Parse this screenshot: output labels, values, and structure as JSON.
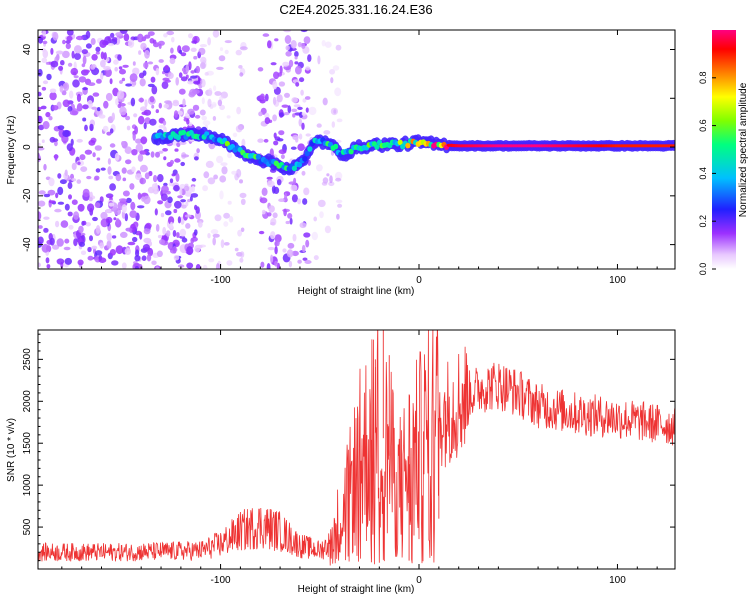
{
  "title": "C2E4.2025.331.16.24.E36",
  "chart_data": [
    {
      "type": "heatmap",
      "name": "spectrogram",
      "xlabel": "Height of straight line (km)",
      "ylabel": "Frequency (Hz)",
      "xlim": [
        -192,
        129
      ],
      "ylim": [
        -50,
        48
      ],
      "xticks": [
        -100,
        0,
        100
      ],
      "xtick_labels": [
        "-100",
        "0",
        "100"
      ],
      "yticks": [
        -40,
        -20,
        0,
        20,
        40
      ],
      "ytick_labels": [
        "-40",
        "-20",
        "0",
        "20",
        "40"
      ],
      "colorbar": {
        "label": "Normalized spectral amplitude",
        "range": [
          0,
          1
        ],
        "ticks": [
          0.0,
          0.2,
          0.4,
          0.6,
          0.8
        ],
        "tick_labels": [
          "0.0",
          "0.2",
          "0.4",
          "0.6",
          "0.8"
        ]
      },
      "ridge": {
        "x": [
          -133,
          -120,
          -108,
          -100,
          -90,
          -80,
          -72,
          -65,
          -58,
          -52,
          -45,
          -38,
          -30,
          -20,
          -10,
          0,
          10,
          20,
          40,
          60,
          80,
          100,
          129
        ],
        "y": [
          4,
          5,
          5,
          3,
          -2,
          -5,
          -7,
          -9,
          -6,
          3,
          1,
          -3,
          0,
          1,
          1,
          2,
          1,
          0.5,
          0.5,
          0.5,
          0.5,
          0.5,
          0.5
        ],
        "amplitude": [
          0.4,
          0.45,
          0.45,
          0.5,
          0.5,
          0.5,
          0.45,
          0.45,
          0.4,
          0.45,
          0.45,
          0.5,
          0.5,
          0.55,
          0.6,
          0.7,
          0.9,
          0.95,
          1.0,
          1.0,
          0.95,
          0.9,
          0.9
        ]
      }
    },
    {
      "type": "line",
      "name": "snr",
      "xlabel": "Height of straight line (km)",
      "ylabel": "SNR (10 * v/v)",
      "xlim": [
        -192,
        129
      ],
      "ylim": [
        0,
        2850
      ],
      "xticks": [
        -100,
        0,
        100
      ],
      "xtick_labels": [
        "-100",
        "0",
        "100"
      ],
      "yticks": [
        500,
        1000,
        1500,
        2000,
        2500
      ],
      "ytick_labels": [
        "500",
        "1000",
        "1500",
        "2000",
        "2500"
      ],
      "color": "#ee3333",
      "envelope": {
        "x": [
          -192,
          -150,
          -110,
          -100,
          -90,
          -80,
          -70,
          -60,
          -50,
          -45,
          -40,
          -35,
          -30,
          -25,
          -20,
          -15,
          -10,
          -5,
          0,
          5,
          10,
          20,
          30,
          40,
          50,
          60,
          80,
          100,
          129
        ],
        "y": [
          200,
          200,
          220,
          300,
          450,
          520,
          450,
          280,
          220,
          300,
          600,
          900,
          1300,
          1500,
          1700,
          1350,
          1000,
          1250,
          1400,
          1600,
          1800,
          2000,
          2150,
          2200,
          2100,
          1950,
          1850,
          1800,
          1700
        ]
      },
      "spikes": [
        {
          "x": -22,
          "y": 2500
        },
        {
          "x": -18,
          "y": 2850
        },
        {
          "x": -15,
          "y": 2550
        },
        {
          "x": -5,
          "y": 100
        },
        {
          "x": -24,
          "y": 80
        },
        {
          "x": 10,
          "y": 600
        }
      ]
    }
  ]
}
